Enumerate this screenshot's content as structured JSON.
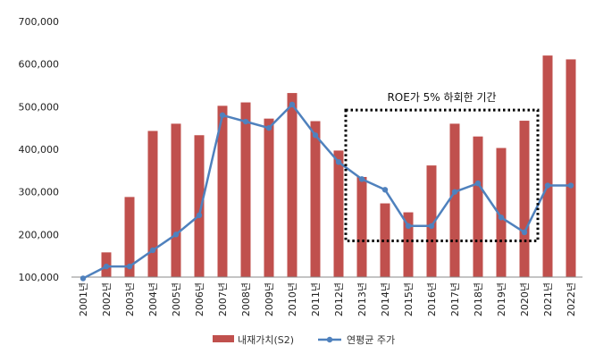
{
  "chart_data": {
    "type": "bar",
    "categories": [
      "2001년",
      "2002년",
      "2003년",
      "2004년",
      "2005년",
      "2006년",
      "2007년",
      "2008년",
      "2009년",
      "2010년",
      "2011년",
      "2012년",
      "2013년",
      "2014년",
      "2015년",
      "2016년",
      "2017년",
      "2018년",
      "2019년",
      "2020년",
      "2021년",
      "2022년"
    ],
    "series": [
      {
        "name": "내재가치(S2)",
        "type": "bar",
        "color": "#C0504D",
        "values": [
          100000,
          158000,
          288000,
          443000,
          460000,
          433000,
          502000,
          510000,
          472000,
          532000,
          466000,
          397000,
          335000,
          273000,
          252000,
          362000,
          460000,
          430000,
          403000,
          467000,
          620000,
          611000
        ]
      },
      {
        "name": "연평균 주가",
        "type": "line",
        "color": "#4F81BD",
        "values": [
          97000,
          125000,
          125000,
          163000,
          200000,
          245000,
          480000,
          465000,
          450000,
          505000,
          433000,
          370000,
          330000,
          305000,
          220000,
          220000,
          300000,
          320000,
          240000,
          205000,
          315000,
          315000
        ]
      }
    ],
    "ylim": [
      100000,
      700000
    ],
    "yticks": [
      "100,000",
      "200,000",
      "300,000",
      "400,000",
      "500,000",
      "600,000",
      "700,000"
    ],
    "ytick_values": [
      100000,
      200000,
      300000,
      400000,
      500000,
      600000,
      700000
    ],
    "annotation": {
      "text": "ROE가 5% 하회한 기간",
      "from": "2013년",
      "to": "2020년",
      "y_range": [
        185000,
        492000
      ]
    },
    "legend_position": "bottom",
    "grid": false
  }
}
